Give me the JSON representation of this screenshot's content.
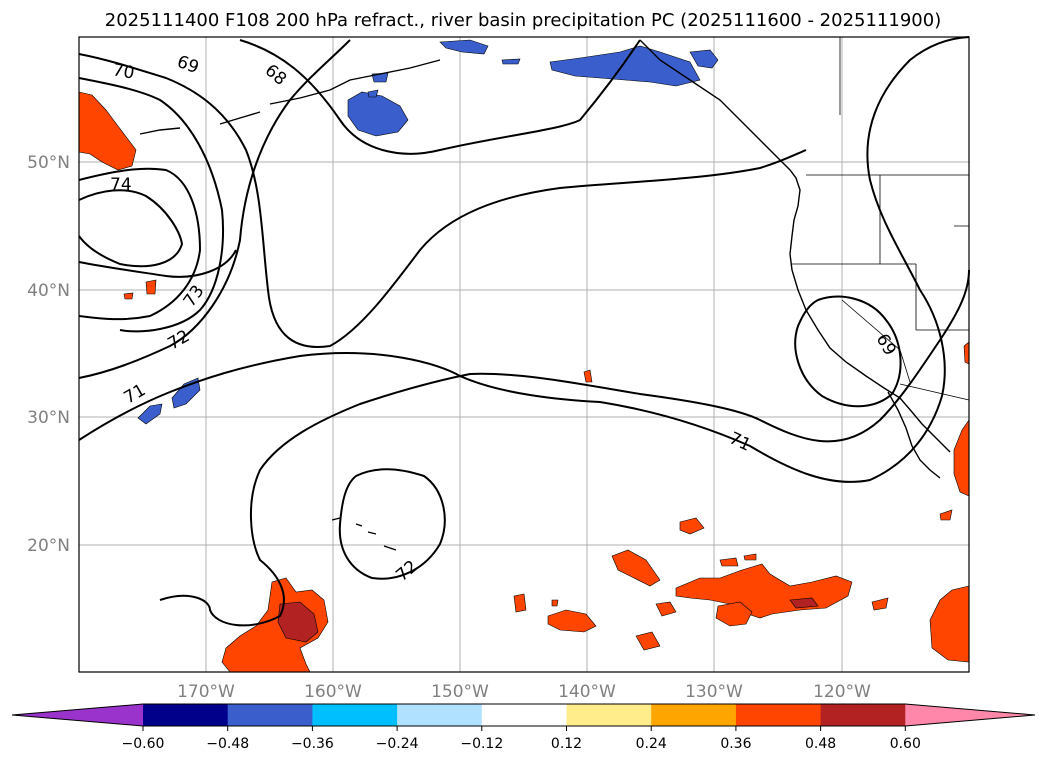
{
  "title": "2025111400 F108 200 hPa refract., river basin precipitation PC (2025111600 - 2025111900)",
  "lat_labels": [
    "50°N",
    "40°N",
    "30°N",
    "20°N"
  ],
  "lon_labels": [
    "170°W",
    "160°W",
    "150°W",
    "140°W",
    "130°W",
    "120°W"
  ],
  "contour_labels": [
    "70",
    "69",
    "68",
    "74",
    "73",
    "72",
    "71",
    "71",
    "69",
    "72"
  ],
  "colorbar": {
    "ticks": [
      "−0.60",
      "−0.48",
      "−0.36",
      "−0.24",
      "−0.12",
      "0.12",
      "0.24",
      "0.36",
      "0.48",
      "0.60"
    ],
    "colors": [
      "#9933cc",
      "#00008b",
      "#3a5fcd",
      "#00bfff",
      "#b0e2ff",
      "#ffffff",
      "#ffec8b",
      "#ffa500",
      "#ff4500",
      "#b22222",
      "#ff88aa"
    ]
  },
  "colors": {
    "negative_strong": "#3a5fcd",
    "negative_mid": "#00bfff",
    "positive_mid": "#ff4500",
    "positive_strong": "#b22222",
    "positive_edge": "#ffa500",
    "positive_faint": "#ffec8b",
    "gridline": "#b0b0b0",
    "contour": "#000000"
  }
}
